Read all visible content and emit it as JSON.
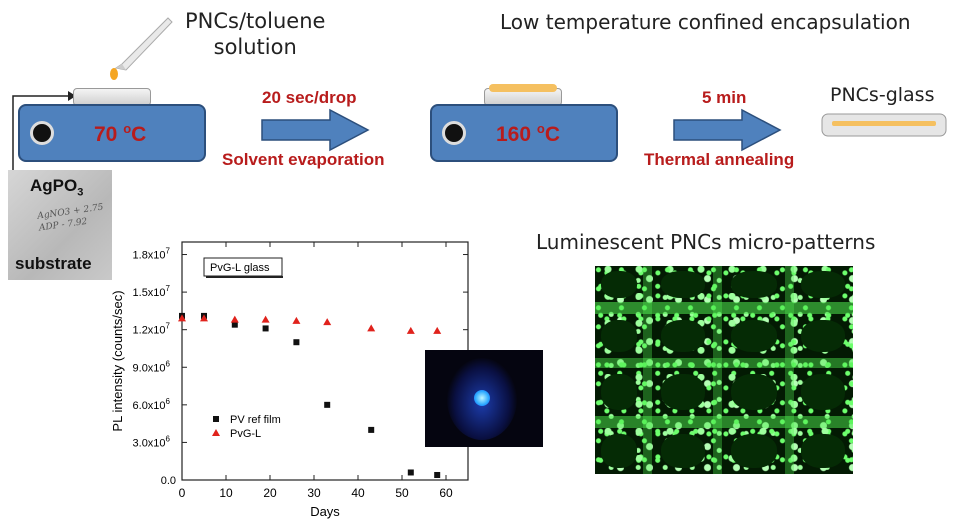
{
  "texts": {
    "pncs_solution": "PNCs/toluene\nsolution",
    "title": "Low temperature confined encapsulation",
    "temp1": "70",
    "temp2": "160",
    "temp_unit": "C",
    "temp_o": "o",
    "step1_rate": "20 sec/drop",
    "step1_name": "Solvent evaporation",
    "step2_time": "5 min",
    "step2_name": "Thermal annealing",
    "product": "PNCs-glass",
    "substrate_formula": "AgPO",
    "substrate_sub": "3",
    "substrate_label": "substrate",
    "handwriting": "AgNO3 + 2.75\nADP - 7.92",
    "patterns_title": "Luminescent PNCs micro-patterns"
  },
  "colors": {
    "hotplate": "#4f81bd",
    "arrow": "#4f81bd",
    "accent_red": "#b81c1c",
    "drop": "#f5a623",
    "fluor_green": "#22dd22",
    "fluor_blue": "#1a4cff"
  },
  "icons": [
    "pipette-icon",
    "arrow-right-icon",
    "petri-dish-icon"
  ],
  "chart_data": {
    "type": "scatter",
    "title": "",
    "legend_box_title": "PvG-L glass",
    "xlabel": "Days",
    "ylabel": "PL intensity (counts/sec)",
    "xlim": [
      0,
      65
    ],
    "ylim": [
      0,
      19000000.0
    ],
    "xticks": [
      0,
      10,
      20,
      30,
      40,
      50,
      60
    ],
    "yticks": [
      {
        "v": 0,
        "label": "0.0"
      },
      {
        "v": 3000000.0,
        "label": "3.0x10",
        "exp": "6"
      },
      {
        "v": 6000000.0,
        "label": "6.0x10",
        "exp": "6"
      },
      {
        "v": 9000000.0,
        "label": "9.0x10",
        "exp": "6"
      },
      {
        "v": 12000000.0,
        "label": "1.2x10",
        "exp": "7"
      },
      {
        "v": 15000000.0,
        "label": "1.5x10",
        "exp": "7"
      },
      {
        "v": 18000000.0,
        "label": "1.8x10",
        "exp": "7"
      }
    ],
    "legend_placement": "lower-left",
    "series": [
      {
        "name": "PV ref film",
        "marker": "square",
        "color": "#111111",
        "x": [
          0,
          5,
          12,
          19,
          26,
          33,
          43,
          52,
          58
        ],
        "y": [
          13100000.0,
          13100000.0,
          12400000.0,
          12100000.0,
          11000000.0,
          6000000.0,
          4000000.0,
          600000.0,
          400000.0
        ]
      },
      {
        "name": "PvG-L",
        "marker": "triangle",
        "color": "#e0221c",
        "x": [
          0,
          5,
          12,
          19,
          26,
          33,
          43,
          52,
          58
        ],
        "y": [
          12900000.0,
          12900000.0,
          12800000.0,
          12800000.0,
          12700000.0,
          12600000.0,
          12100000.0,
          11900000.0,
          11900000.0
        ]
      }
    ]
  }
}
